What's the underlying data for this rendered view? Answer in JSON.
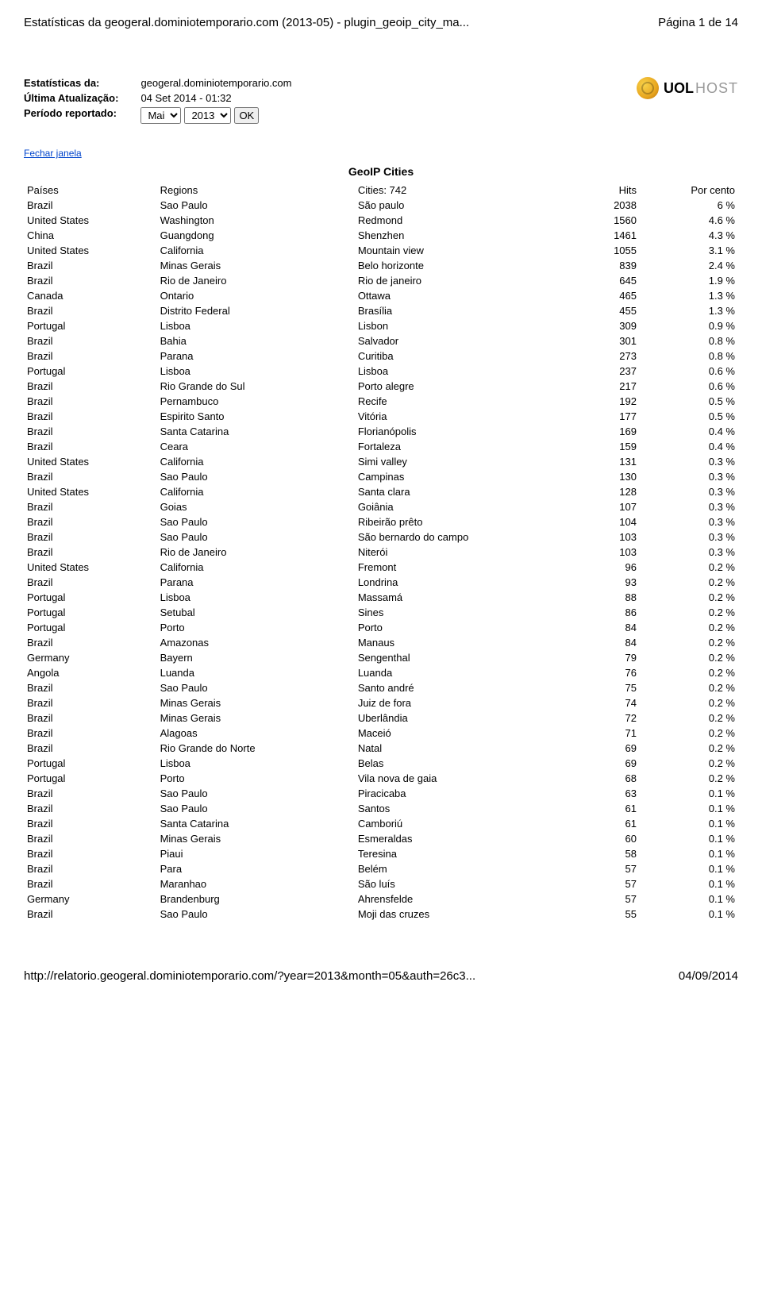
{
  "header": {
    "left": "Estatísticas da geogeral.dominiotemporario.com (2013-05) - plugin_geoip_city_ma...",
    "right": "Página 1 de 14"
  },
  "info": {
    "labels": {
      "stats_of": "Estatísticas da:",
      "last_update": "Última Atualização:",
      "period": "Período reportado:"
    },
    "values": {
      "domain": "geogeral.dominiotemporario.com",
      "last_update": "04 Set 2014 - 01:32",
      "month": "Mai",
      "year": "2013",
      "ok": "OK"
    }
  },
  "logo": {
    "brand": "UOL",
    "suffix": "HOST"
  },
  "close_link": "Fechar janela",
  "table": {
    "title": "GeoIP Cities",
    "columns": [
      "Países",
      "Regions",
      "Cities: 742",
      "Hits",
      "Por cento"
    ],
    "rows": [
      [
        "Brazil",
        "Sao Paulo",
        "São paulo",
        "2038",
        "6 %"
      ],
      [
        "United States",
        "Washington",
        "Redmond",
        "1560",
        "4.6 %"
      ],
      [
        "China",
        "Guangdong",
        "Shenzhen",
        "1461",
        "4.3 %"
      ],
      [
        "United States",
        "California",
        "Mountain view",
        "1055",
        "3.1 %"
      ],
      [
        "Brazil",
        "Minas Gerais",
        "Belo horizonte",
        "839",
        "2.4 %"
      ],
      [
        "Brazil",
        "Rio de Janeiro",
        "Rio de janeiro",
        "645",
        "1.9 %"
      ],
      [
        "Canada",
        "Ontario",
        "Ottawa",
        "465",
        "1.3 %"
      ],
      [
        "Brazil",
        "Distrito Federal",
        "Brasília",
        "455",
        "1.3 %"
      ],
      [
        "Portugal",
        "Lisboa",
        "Lisbon",
        "309",
        "0.9 %"
      ],
      [
        "Brazil",
        "Bahia",
        "Salvador",
        "301",
        "0.8 %"
      ],
      [
        "Brazil",
        "Parana",
        "Curitiba",
        "273",
        "0.8 %"
      ],
      [
        "Portugal",
        "Lisboa",
        "Lisboa",
        "237",
        "0.6 %"
      ],
      [
        "Brazil",
        "Rio Grande do Sul",
        "Porto alegre",
        "217",
        "0.6 %"
      ],
      [
        "Brazil",
        "Pernambuco",
        "Recife",
        "192",
        "0.5 %"
      ],
      [
        "Brazil",
        "Espirito Santo",
        "Vitória",
        "177",
        "0.5 %"
      ],
      [
        "Brazil",
        "Santa Catarina",
        "Florianópolis",
        "169",
        "0.4 %"
      ],
      [
        "Brazil",
        "Ceara",
        "Fortaleza",
        "159",
        "0.4 %"
      ],
      [
        "United States",
        "California",
        "Simi valley",
        "131",
        "0.3 %"
      ],
      [
        "Brazil",
        "Sao Paulo",
        "Campinas",
        "130",
        "0.3 %"
      ],
      [
        "United States",
        "California",
        "Santa clara",
        "128",
        "0.3 %"
      ],
      [
        "Brazil",
        "Goias",
        "Goiânia",
        "107",
        "0.3 %"
      ],
      [
        "Brazil",
        "Sao Paulo",
        "Ribeirão prêto",
        "104",
        "0.3 %"
      ],
      [
        "Brazil",
        "Sao Paulo",
        "São bernardo do campo",
        "103",
        "0.3 %"
      ],
      [
        "Brazil",
        "Rio de Janeiro",
        "Niterói",
        "103",
        "0.3 %"
      ],
      [
        "United States",
        "California",
        "Fremont",
        "96",
        "0.2 %"
      ],
      [
        "Brazil",
        "Parana",
        "Londrina",
        "93",
        "0.2 %"
      ],
      [
        "Portugal",
        "Lisboa",
        "Massamá",
        "88",
        "0.2 %"
      ],
      [
        "Portugal",
        "Setubal",
        "Sines",
        "86",
        "0.2 %"
      ],
      [
        "Portugal",
        "Porto",
        "Porto",
        "84",
        "0.2 %"
      ],
      [
        "Brazil",
        "Amazonas",
        "Manaus",
        "84",
        "0.2 %"
      ],
      [
        "Germany",
        "Bayern",
        "Sengenthal",
        "79",
        "0.2 %"
      ],
      [
        "Angola",
        "Luanda",
        "Luanda",
        "76",
        "0.2 %"
      ],
      [
        "Brazil",
        "Sao Paulo",
        "Santo andré",
        "75",
        "0.2 %"
      ],
      [
        "Brazil",
        "Minas Gerais",
        "Juiz de fora",
        "74",
        "0.2 %"
      ],
      [
        "Brazil",
        "Minas Gerais",
        "Uberlândia",
        "72",
        "0.2 %"
      ],
      [
        "Brazil",
        "Alagoas",
        "Maceió",
        "71",
        "0.2 %"
      ],
      [
        "Brazil",
        "Rio Grande do Norte",
        "Natal",
        "69",
        "0.2 %"
      ],
      [
        "Portugal",
        "Lisboa",
        "Belas",
        "69",
        "0.2 %"
      ],
      [
        "Portugal",
        "Porto",
        "Vila nova de gaia",
        "68",
        "0.2 %"
      ],
      [
        "Brazil",
        "Sao Paulo",
        "Piracicaba",
        "63",
        "0.1 %"
      ],
      [
        "Brazil",
        "Sao Paulo",
        "Santos",
        "61",
        "0.1 %"
      ],
      [
        "Brazil",
        "Santa Catarina",
        "Camboriú",
        "61",
        "0.1 %"
      ],
      [
        "Brazil",
        "Minas Gerais",
        "Esmeraldas",
        "60",
        "0.1 %"
      ],
      [
        "Brazil",
        "Piaui",
        "Teresina",
        "58",
        "0.1 %"
      ],
      [
        "Brazil",
        "Para",
        "Belém",
        "57",
        "0.1 %"
      ],
      [
        "Brazil",
        "Maranhao",
        "São luís",
        "57",
        "0.1 %"
      ],
      [
        "Germany",
        "Brandenburg",
        "Ahrensfelde",
        "57",
        "0.1 %"
      ],
      [
        "Brazil",
        "Sao Paulo",
        "Moji das cruzes",
        "55",
        "0.1 %"
      ]
    ]
  },
  "footer": {
    "left": "http://relatorio.geogeral.dominiotemporario.com/?year=2013&month=05&auth=26c3...",
    "right": "04/09/2014"
  }
}
